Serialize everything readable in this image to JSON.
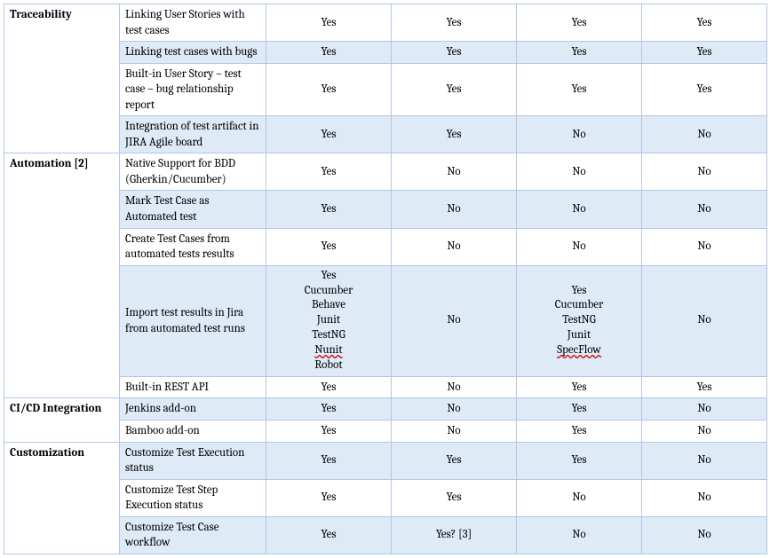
{
  "colors": {
    "border": "#b4c6e7",
    "shade": "#deeaf6",
    "spell_underline": "#d00000"
  },
  "sections": [
    {
      "category": "Traceability",
      "rows": [
        {
          "feature": "Linking User Stories with test cases",
          "values": [
            "Yes",
            "Yes",
            "Yes",
            "Yes"
          ],
          "shaded": false
        },
        {
          "feature": "Linking test cases with bugs",
          "values": [
            "Yes",
            "Yes",
            "Yes",
            "Yes"
          ],
          "shaded": true
        },
        {
          "feature": "Built-in User Story – test case – bug relationship report",
          "values": [
            "Yes",
            "Yes",
            "Yes",
            "Yes"
          ],
          "shaded": false
        },
        {
          "feature": "Integration of test artifact in JIRA Agile board",
          "values": [
            "Yes",
            "Yes",
            "No",
            "No"
          ],
          "shaded": true
        }
      ]
    },
    {
      "category": "Automation [2]",
      "rows": [
        {
          "feature": "Native Support for BDD (Gherkin/Cucumber)",
          "values": [
            "Yes",
            "No",
            "No",
            "No"
          ],
          "shaded": false
        },
        {
          "feature": "Mark Test Case as Automated test",
          "values": [
            "Yes",
            "No",
            "No",
            "No"
          ],
          "shaded": true
        },
        {
          "feature": "Create Test Cases from automated tests results",
          "values": [
            "Yes",
            "No",
            "No",
            "No"
          ],
          "shaded": false
        },
        {
          "feature": "Import test results in Jira from automated test runs",
          "values_multi": [
            [
              "Yes",
              "Cucumber",
              "Behave",
              "Junit",
              "TestNG",
              "Nunit",
              "Robot"
            ],
            [
              "No"
            ],
            [
              "Yes",
              "Cucumber",
              "TestNG",
              "Junit",
              "SpecFlow"
            ],
            [
              "No"
            ]
          ],
          "spell": {
            "0": [
              5
            ],
            "2": [
              4
            ]
          },
          "shaded": true
        },
        {
          "feature": "Built-in REST API",
          "values": [
            "Yes",
            "No",
            "Yes",
            "Yes"
          ],
          "shaded": false
        }
      ]
    },
    {
      "category": "CI/CD Integration",
      "rows": [
        {
          "feature": "Jenkins add-on",
          "values": [
            "Yes",
            "No",
            "Yes",
            "No"
          ],
          "shaded": true
        },
        {
          "feature": "Bamboo add-on",
          "values": [
            "Yes",
            "No",
            "Yes",
            "No"
          ],
          "shaded": false
        }
      ]
    },
    {
      "category": "Customization",
      "rows": [
        {
          "feature": "Customize Test Execution status",
          "values": [
            "Yes",
            "Yes",
            "Yes",
            "No"
          ],
          "shaded": true
        },
        {
          "feature": "Customize Test Step Execution status",
          "values": [
            "Yes",
            "Yes",
            "No",
            "No"
          ],
          "shaded": false
        },
        {
          "feature": "Customize Test Case workflow",
          "values": [
            "Yes",
            "Yes? [3]",
            "No",
            "No"
          ],
          "shaded": true
        }
      ]
    }
  ]
}
